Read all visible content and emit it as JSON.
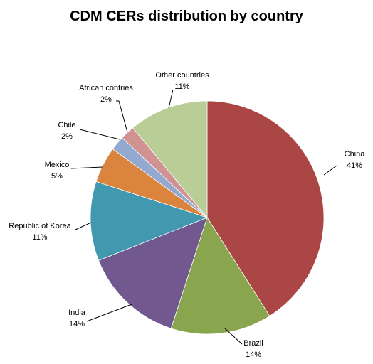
{
  "chart_data": {
    "type": "pie",
    "title": "CDM CERs distribution by country",
    "slices": [
      {
        "label": "China",
        "value": 41,
        "value_label": "41%",
        "color": "#AA4643"
      },
      {
        "label": "Brazil",
        "value": 14,
        "value_label": "14%",
        "color": "#89A54E"
      },
      {
        "label": "India",
        "value": 14,
        "value_label": "14%",
        "color": "#71588F"
      },
      {
        "label": "Republic of Korea",
        "value": 11,
        "value_label": "11%",
        "color": "#4198AF"
      },
      {
        "label": "Mexico",
        "value": 5,
        "value_label": "5%",
        "color": "#DB843D"
      },
      {
        "label": "Chile",
        "value": 2,
        "value_label": "2%",
        "color": "#93A9CF"
      },
      {
        "label": "African contries",
        "value": 2,
        "value_label": "2%",
        "color": "#D19392"
      },
      {
        "label": "Other countries",
        "value": 11,
        "value_label": "11%",
        "color": "#B9CD96"
      }
    ],
    "start": "12 o'clock",
    "direction": "clockwise",
    "legend": "none",
    "labels": "outside with leader lines"
  }
}
